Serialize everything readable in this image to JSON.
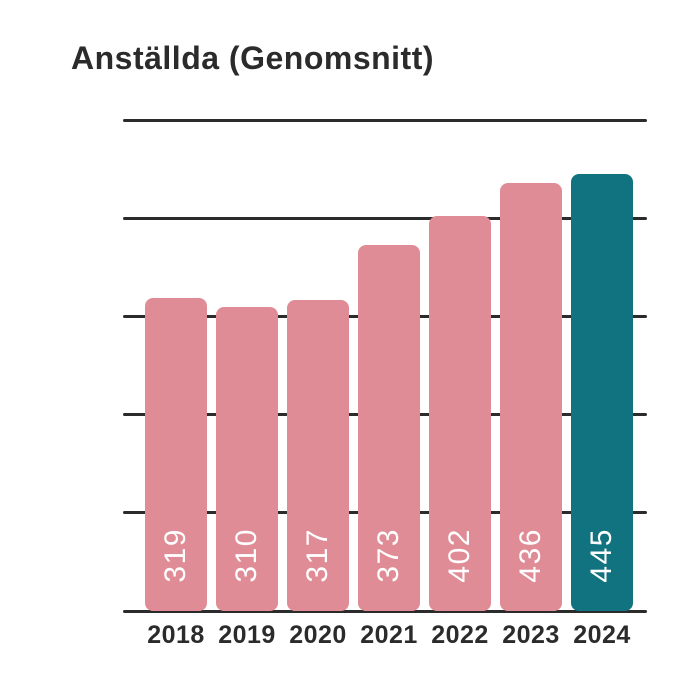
{
  "title": "Anställda (Genomsnitt)",
  "colors": {
    "background": "#ffffff",
    "title": "#2b2b2b",
    "grid": "#2b2b2b",
    "tick_label": "#2b2b2b",
    "bar_default": "#e08c96",
    "bar_highlight": "#117380",
    "value_label": "#ffffff"
  },
  "chart_data": {
    "type": "bar",
    "title": "Anställda (Genomsnitt)",
    "categories": [
      "2018",
      "2019",
      "2020",
      "2021",
      "2022",
      "2023",
      "2024"
    ],
    "values": [
      319,
      310,
      317,
      373,
      402,
      436,
      445
    ],
    "xlabel": "",
    "ylabel": "",
    "ylim": [
      0,
      500
    ],
    "grid": true,
    "gridline_step": 100,
    "y_tick_labels_visible": false,
    "legend": false,
    "highlight_index": 6,
    "value_label_style": "rotated-90-inside-bottom"
  }
}
